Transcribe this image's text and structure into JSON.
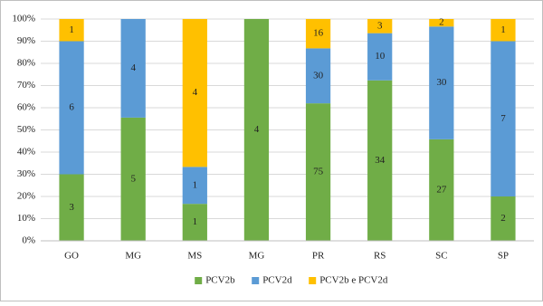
{
  "chart_data": {
    "type": "bar",
    "stacking": "percent",
    "categories": [
      "GO",
      "MG",
      "MS",
      "MG",
      "PR",
      "RS",
      "SC",
      "SP"
    ],
    "series": [
      {
        "name": "PCV2b",
        "color": "#70ad47",
        "values": [
          3,
          5,
          1,
          4,
          75,
          34,
          27,
          2
        ]
      },
      {
        "name": "PCV2d",
        "color": "#5b9bd5",
        "values": [
          6,
          4,
          1,
          0,
          30,
          10,
          30,
          7
        ]
      },
      {
        "name": "PCV2b e PCV2d",
        "color": "#ffc000",
        "values": [
          1,
          0,
          4,
          0,
          16,
          3,
          2,
          1
        ]
      }
    ],
    "ylim": [
      0,
      100
    ],
    "yticks": [
      {
        "value": 0,
        "label": "0%"
      },
      {
        "value": 10,
        "label": "10%"
      },
      {
        "value": 20,
        "label": "20%"
      },
      {
        "value": 30,
        "label": "30%"
      },
      {
        "value": 40,
        "label": "40%"
      },
      {
        "value": 50,
        "label": "50%"
      },
      {
        "value": 60,
        "label": "60%"
      },
      {
        "value": 70,
        "label": "70%"
      },
      {
        "value": 80,
        "label": "80%"
      },
      {
        "value": 90,
        "label": "90%"
      },
      {
        "value": 100,
        "label": "100%"
      }
    ],
    "grid": true,
    "legend": "bottom"
  }
}
